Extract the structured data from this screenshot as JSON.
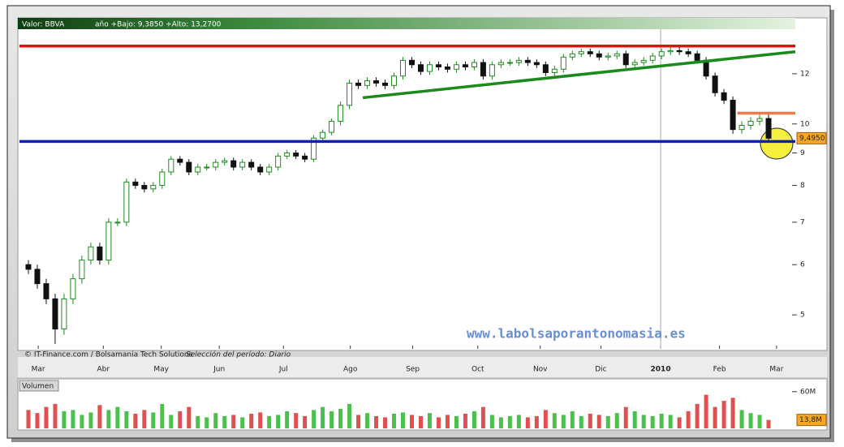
{
  "header": {
    "symbol_label": "Valor: BBVA",
    "range_label": "año +Bajo: 9,3850 +Alto: 13,2700"
  },
  "chart_data": [
    {
      "type": "candlestick",
      "xlim": [
        -1,
        86
      ],
      "xticks": [
        {
          "value": 1.1,
          "label": "Mar"
        },
        {
          "value": 8.4,
          "label": "Abr"
        },
        {
          "value": 14.9,
          "label": "May"
        },
        {
          "value": 21.4,
          "label": "Jun"
        },
        {
          "value": 28.6,
          "label": "Jul"
        },
        {
          "value": 36.1,
          "label": "Ago"
        },
        {
          "value": 43.1,
          "label": "Sep"
        },
        {
          "value": 50.4,
          "label": "Oct"
        },
        {
          "value": 57.4,
          "label": "Nov"
        },
        {
          "value": 64.2,
          "label": "Dic"
        },
        {
          "value": 70.9,
          "label": "2010",
          "bold": true
        },
        {
          "value": 77.5,
          "label": "Feb"
        },
        {
          "value": 83.9,
          "label": "Mar"
        }
      ],
      "ylim": [
        4.42,
        14.7
      ],
      "log_scale": true,
      "yticks": [
        5,
        6,
        7,
        8,
        9,
        10,
        12
      ],
      "open": [
        6.0,
        5.9,
        5.6,
        5.3,
        4.75,
        5.3,
        5.7,
        6.1,
        6.4,
        6.1,
        7.0,
        7.0,
        8.1,
        8.0,
        7.9,
        8.0,
        8.4,
        8.8,
        8.7,
        8.4,
        8.55,
        8.55,
        8.7,
        8.75,
        8.55,
        8.7,
        8.55,
        8.4,
        8.55,
        8.9,
        9.0,
        8.9,
        8.8,
        9.5,
        9.7,
        10.1,
        10.7,
        11.6,
        11.5,
        11.7,
        11.6,
        11.5,
        11.9,
        12.6,
        12.4,
        12.1,
        12.4,
        12.3,
        12.2,
        12.4,
        12.3,
        12.5,
        11.9,
        12.4,
        12.5,
        12.5,
        12.6,
        12.5,
        12.4,
        12.05,
        12.2,
        12.75,
        12.9,
        13.0,
        12.9,
        12.75,
        12.8,
        12.9,
        12.4,
        12.5,
        12.6,
        12.8,
        13.0,
        13.05,
        13.0,
        12.9,
        12.6,
        11.9,
        11.2,
        10.9,
        9.8,
        9.95,
        10.1,
        10.2
      ],
      "high": [
        6.1,
        6.0,
        5.7,
        5.4,
        5.4,
        5.8,
        6.2,
        6.5,
        6.5,
        7.1,
        7.1,
        8.2,
        8.2,
        8.1,
        8.1,
        8.5,
        8.9,
        8.9,
        8.8,
        8.65,
        8.65,
        8.8,
        8.85,
        8.85,
        8.8,
        8.8,
        8.65,
        8.65,
        9.0,
        9.1,
        9.1,
        9.0,
        9.6,
        9.8,
        10.2,
        10.85,
        11.75,
        11.75,
        11.85,
        11.85,
        11.75,
        12.05,
        12.75,
        12.75,
        12.55,
        12.55,
        12.55,
        12.45,
        12.55,
        12.55,
        12.65,
        12.65,
        12.55,
        12.65,
        12.65,
        12.75,
        12.75,
        12.65,
        12.55,
        12.35,
        12.9,
        13.05,
        13.15,
        13.15,
        13.05,
        12.95,
        13.05,
        13.05,
        12.65,
        12.75,
        12.95,
        13.15,
        13.2,
        13.27,
        13.15,
        13.05,
        12.75,
        12.05,
        11.35,
        11.05,
        10.1,
        10.25,
        10.35,
        10.35
      ],
      "low": [
        5.8,
        5.5,
        5.2,
        4.5,
        4.65,
        5.2,
        5.6,
        6.0,
        6.0,
        6.0,
        6.9,
        6.9,
        7.9,
        7.8,
        7.8,
        7.9,
        8.3,
        8.6,
        8.3,
        8.3,
        8.45,
        8.45,
        8.6,
        8.45,
        8.45,
        8.45,
        8.3,
        8.3,
        8.45,
        8.8,
        8.8,
        8.7,
        8.7,
        9.4,
        9.6,
        9.95,
        10.55,
        11.35,
        11.35,
        11.45,
        11.35,
        11.35,
        11.75,
        12.25,
        11.95,
        11.95,
        12.15,
        12.05,
        12.05,
        12.15,
        12.15,
        11.75,
        11.75,
        12.25,
        12.35,
        12.35,
        12.35,
        12.25,
        11.9,
        11.9,
        12.05,
        12.6,
        12.75,
        12.75,
        12.6,
        12.6,
        12.65,
        12.25,
        12.25,
        12.35,
        12.45,
        12.65,
        12.85,
        12.85,
        12.75,
        12.45,
        11.75,
        11.05,
        10.75,
        9.65,
        9.65,
        9.8,
        9.95,
        9.385
      ],
      "close": [
        5.9,
        5.6,
        5.3,
        4.75,
        5.3,
        5.7,
        6.1,
        6.4,
        6.1,
        7.0,
        7.0,
        8.1,
        8.0,
        7.9,
        8.0,
        8.4,
        8.8,
        8.7,
        8.4,
        8.55,
        8.55,
        8.7,
        8.75,
        8.55,
        8.7,
        8.55,
        8.4,
        8.55,
        8.9,
        9.0,
        8.9,
        8.8,
        9.5,
        9.7,
        10.1,
        10.7,
        11.6,
        11.5,
        11.7,
        11.6,
        11.5,
        11.9,
        12.6,
        12.4,
        12.1,
        12.4,
        12.3,
        12.2,
        12.4,
        12.3,
        12.5,
        11.9,
        12.4,
        12.5,
        12.5,
        12.6,
        12.5,
        12.4,
        12.05,
        12.2,
        12.75,
        12.9,
        13.0,
        12.9,
        12.75,
        12.8,
        12.9,
        12.4,
        12.5,
        12.6,
        12.8,
        13.0,
        13.05,
        13.0,
        12.9,
        12.6,
        11.9,
        11.2,
        10.9,
        9.8,
        9.95,
        10.1,
        10.2,
        9.495
      ],
      "up_color": "#1f8a1f",
      "down_color": "#111111",
      "last_price": {
        "value": 9.495,
        "label": "9,4950"
      },
      "lines": [
        {
          "x": [
            -1,
            86
          ],
          "y": [
            13.27,
            13.27
          ],
          "color": "#e01010"
        },
        {
          "x": [
            -1,
            86
          ],
          "y": [
            9.385,
            9.385
          ],
          "color": "#1020b0"
        },
        {
          "x": [
            37.5,
            86
          ],
          "y": [
            11.0,
            13.0
          ],
          "color": "#1a8a1a"
        },
        {
          "x": [
            79.5,
            86
          ],
          "y": [
            10.4,
            10.4
          ],
          "color": "#f07a4a"
        }
      ],
      "credit": "© IT-Finance.com / Bolsamania Tech Solutions",
      "period_label": "Selección del período: Diario",
      "watermark": "www.labolsaporantonomasia.es"
    },
    {
      "type": "bar",
      "title": "Volumen",
      "values": [
        30,
        25,
        35,
        40,
        28,
        30,
        22,
        26,
        38,
        30,
        35,
        28,
        24,
        30,
        26,
        40,
        22,
        28,
        35,
        20,
        18,
        25,
        20,
        22,
        18,
        24,
        26,
        20,
        22,
        28,
        25,
        20,
        30,
        35,
        28,
        32,
        40,
        22,
        25,
        20,
        18,
        24,
        26,
        22,
        20,
        25,
        18,
        22,
        20,
        24,
        28,
        35,
        22,
        18,
        20,
        22,
        18,
        20,
        30,
        25,
        22,
        28,
        20,
        24,
        22,
        20,
        25,
        35,
        28,
        22,
        20,
        24,
        22,
        18,
        28,
        40,
        55,
        35,
        45,
        50,
        30,
        25,
        22,
        13.8
      ],
      "ylim": [
        0,
        77
      ],
      "yticks": [
        {
          "value": 60,
          "label": "60M"
        }
      ],
      "last": {
        "value": 13.8,
        "label": "13,8M"
      },
      "up_color": "#4cc04c",
      "down_color": "#e05050"
    }
  ]
}
